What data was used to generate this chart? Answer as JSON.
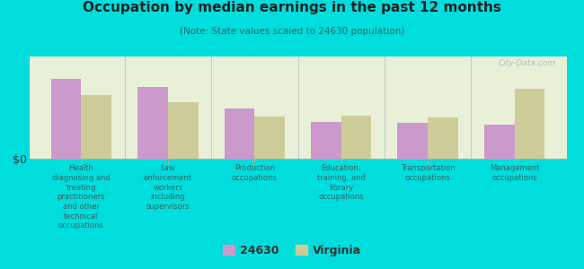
{
  "title": "Occupation by median earnings in the past 12 months",
  "subtitle": "(Note: State values scaled to 24630 population)",
  "categories": [
    "Health\ndiagnosing and\ntreating\npractitioners\nand other\ntechnical\noccupations",
    "Law\nenforcement\nworkers\nincluding\nsupervisors",
    "Production\noccupations",
    "Education,\ntraining, and\nlibrary\noccupations",
    "Transportation\noccupations",
    "Management\noccupations"
  ],
  "values_24630": [
    0.82,
    0.74,
    0.52,
    0.38,
    0.37,
    0.35
  ],
  "values_virginia": [
    0.65,
    0.58,
    0.43,
    0.44,
    0.42,
    0.72
  ],
  "color_24630": "#cc99cc",
  "color_virginia": "#cccc99",
  "background_outer": "#00dddd",
  "bar_width": 0.35,
  "ylabel": "$0",
  "legend_label_1": "24630",
  "legend_label_2": "Virginia",
  "watermark": "City-Data.com"
}
